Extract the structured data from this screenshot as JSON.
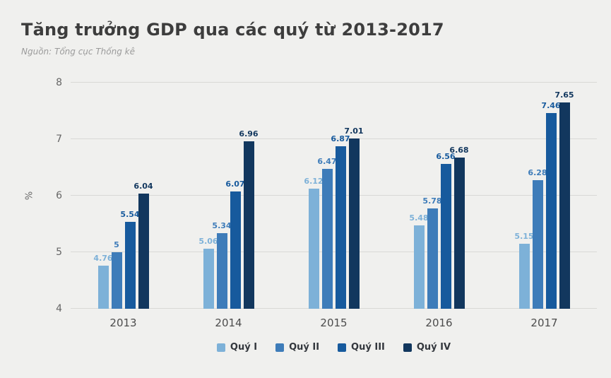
{
  "chart_data": {
    "type": "bar",
    "title": "Tăng trưởng GDP qua các quý từ 2013-2017",
    "subtitle": "Nguồn: Tổng cục Thống kê",
    "categories": [
      "2013",
      "2014",
      "2015",
      "2016",
      "2017"
    ],
    "series": [
      {
        "name": "Quý I",
        "color": "#7db1d8",
        "values": [
          4.76,
          5.06,
          6.12,
          5.48,
          5.15
        ]
      },
      {
        "name": "Quý II",
        "color": "#3e7cb9",
        "values": [
          5,
          5.34,
          6.47,
          5.78,
          6.28
        ]
      },
      {
        "name": "Quý III",
        "color": "#175a9d",
        "values": [
          5.54,
          6.07,
          6.87,
          6.56,
          7.46
        ]
      },
      {
        "name": "Quý IV",
        "color": "#12375e",
        "values": [
          6.04,
          6.96,
          7.01,
          6.68,
          7.65
        ]
      }
    ],
    "xlabel": "",
    "ylabel": "%",
    "ylim": [
      4,
      8
    ],
    "yticks": [
      4,
      5,
      6,
      7,
      8
    ],
    "grid": true,
    "legend_position": "bottom",
    "background": "#f0f0ee"
  }
}
